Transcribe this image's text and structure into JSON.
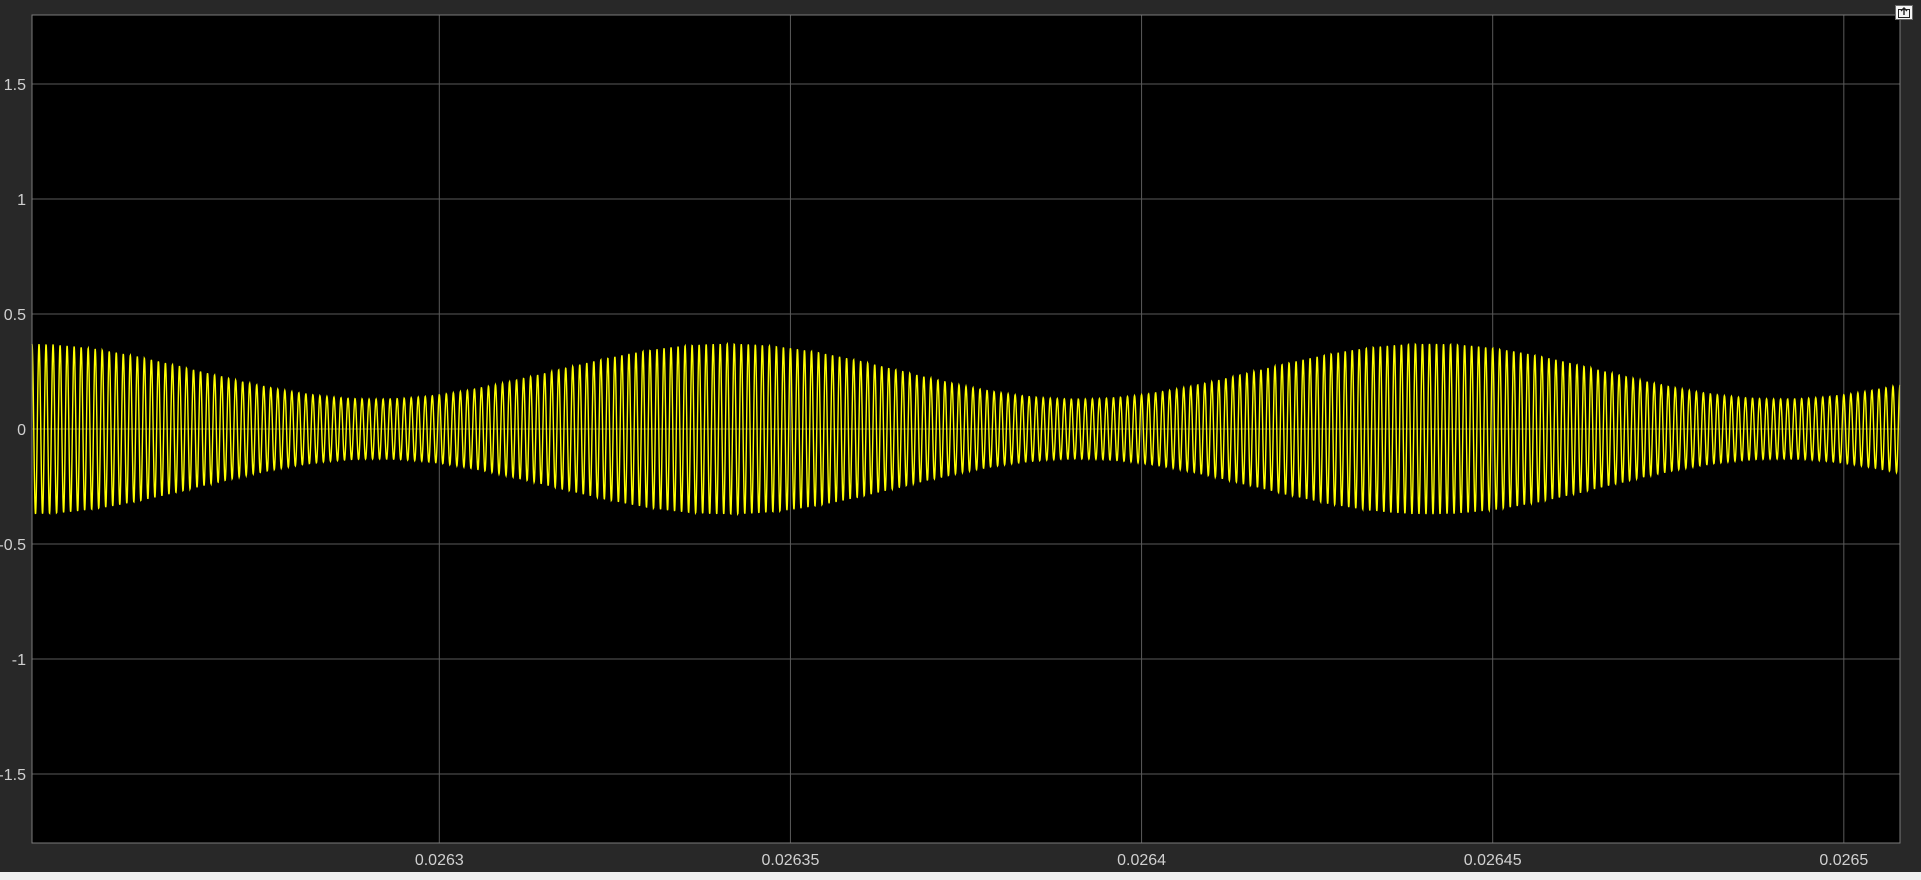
{
  "window": {
    "undock_icon": "undock-arrow-icon"
  },
  "colors": {
    "background": "#282828",
    "axes_background": "#000000",
    "grid": "#5a5a5a",
    "tick_label": "#d0d0d0",
    "signal": "#ffff00"
  },
  "chart_data": {
    "type": "line",
    "title": "",
    "xlabel": "",
    "ylabel": "",
    "grid": true,
    "legend": "none",
    "xlim": [
      0.026242,
      0.026508
    ],
    "ylim": [
      -1.8,
      1.8
    ],
    "xticks": [
      0.0263,
      0.02635,
      0.0264,
      0.02645,
      0.0265
    ],
    "xtick_labels": [
      "0.0263",
      "0.02635",
      "0.0264",
      "0.02645",
      "0.0265"
    ],
    "yticks": [
      1.5,
      1,
      0.5,
      0,
      -0.5,
      -1,
      -1.5
    ],
    "ytick_labels": [
      "1.5",
      "1",
      "0.5",
      "0",
      "-0.5",
      "-1",
      "-1.5"
    ],
    "series": [
      {
        "color": "#ffff00",
        "description": "amplitude-modulated sinusoid",
        "carrier_frequency_hz": 1000000,
        "envelope_period_s": 0.0001,
        "envelope_center": 0.25,
        "envelope_swing": 0.12,
        "envelope_peak_time_s": 0.026341,
        "envelope": {
          "x": [
            0.026242,
            0.0263,
            0.026341,
            0.02638,
            0.02641,
            0.026441,
            0.02648,
            0.026508
          ],
          "y": [
            0.3,
            0.15,
            0.37,
            0.18,
            0.15,
            0.37,
            0.16,
            0.2
          ]
        }
      }
    ]
  }
}
